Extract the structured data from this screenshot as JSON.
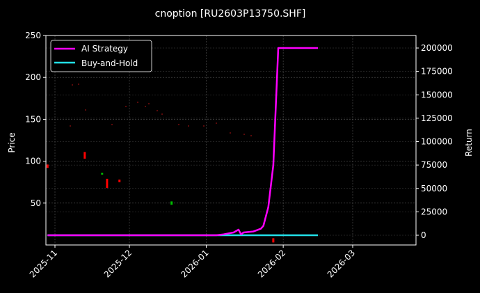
{
  "chart_data": {
    "type": "line",
    "title": "cnoption [RU2603P13750.SHF]",
    "xlabel": "",
    "ylabel_left": "Price",
    "ylabel_right": "Return",
    "ylim_left": [
      0,
      250
    ],
    "ylim_right": [
      -10000,
      210000
    ],
    "grid": true,
    "legend_position": "upper left",
    "x_ticks": [
      "2025-11",
      "2025-12",
      "2026-01",
      "2026-02",
      "2026-03"
    ],
    "y_ticks_left": [
      50,
      100,
      150,
      200,
      250
    ],
    "y_ticks_right": [
      0,
      25000,
      50000,
      75000,
      100000,
      125000,
      150000,
      175000,
      200000
    ],
    "series": [
      {
        "name": "AI Strategy",
        "axis": "right",
        "color": "#ff00ff",
        "points": [
          [
            "2025-10-29",
            0
          ],
          [
            "2026-01-05",
            0
          ],
          [
            "2026-01-08",
            1000
          ],
          [
            "2026-01-12",
            3000
          ],
          [
            "2026-01-14",
            6000
          ],
          [
            "2026-01-15",
            1000
          ],
          [
            "2026-01-16",
            3000
          ],
          [
            "2026-01-20",
            4000
          ],
          [
            "2026-01-22",
            6000
          ],
          [
            "2026-01-23",
            7000
          ],
          [
            "2026-01-24",
            10000
          ],
          [
            "2026-01-26",
            30000
          ],
          [
            "2026-01-28",
            75000
          ],
          [
            "2026-01-30",
            200000
          ],
          [
            "2026-02-15",
            200000
          ]
        ]
      },
      {
        "name": "Buy-and-Hold",
        "axis": "right",
        "color": "#22e0e8",
        "points": [
          [
            "2025-10-29",
            0
          ],
          [
            "2026-02-15",
            0
          ]
        ]
      }
    ],
    "candles_note": "faint OHLC candlesticks on left (Price) axis; most visible red bodies near 95 (late Oct), 107 (mid Nov), 72 (late Nov); green near 48 (mid Dec); small red near 3 (late Jan)",
    "candles": [
      {
        "date": "2025-10-29",
        "open": 96,
        "close": 92,
        "color": "#ff0000"
      },
      {
        "date": "2025-11-13",
        "open": 111,
        "close": 103,
        "color": "#ff0000"
      },
      {
        "date": "2025-11-22",
        "open": 79,
        "close": 68,
        "color": "#ff0000"
      },
      {
        "date": "2025-11-20",
        "open": 84,
        "close": 86,
        "color": "#00c000"
      },
      {
        "date": "2025-11-27",
        "open": 78,
        "close": 75,
        "color": "#ff0000"
      },
      {
        "date": "2025-12-18",
        "open": 48,
        "close": 52,
        "color": "#00c000"
      },
      {
        "date": "2026-01-28",
        "open": 8,
        "close": 3,
        "color": "#ff0000"
      }
    ]
  },
  "legend": {
    "items": [
      {
        "label": "AI Strategy",
        "color": "#ff00ff"
      },
      {
        "label": "Buy-and-Hold",
        "color": "#22e0e8"
      }
    ]
  }
}
